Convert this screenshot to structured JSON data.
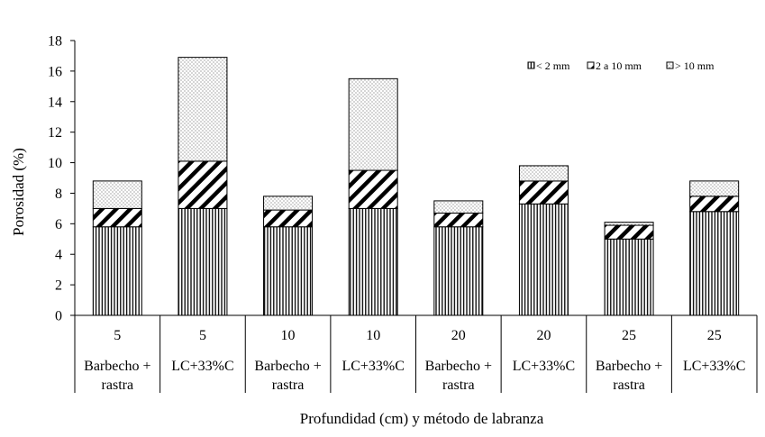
{
  "chart_data": {
    "type": "bar",
    "stacked": true,
    "xlabel": "Profundidad (cm) y método de labranza",
    "ylabel": "Porosidad (%)",
    "ylim": [
      0,
      18
    ],
    "yticks": [
      0,
      2,
      4,
      6,
      8,
      10,
      12,
      14,
      16,
      18
    ],
    "categories": [
      {
        "depth": "5",
        "method": [
          "Barbecho +",
          "rastra"
        ]
      },
      {
        "depth": "5",
        "method": [
          "LC+33%C"
        ]
      },
      {
        "depth": "10",
        "method": [
          "Barbecho +",
          "rastra"
        ]
      },
      {
        "depth": "10",
        "method": [
          "LC+33%C"
        ]
      },
      {
        "depth": "20",
        "method": [
          "Barbecho +",
          "rastra"
        ]
      },
      {
        "depth": "20",
        "method": [
          "LC+33%C"
        ]
      },
      {
        "depth": "25",
        "method": [
          "Barbecho +",
          "rastra"
        ]
      },
      {
        "depth": "25",
        "method": [
          "LC+33%C"
        ]
      }
    ],
    "series": [
      {
        "name": "< 2 mm",
        "pattern": "vertical",
        "values": [
          5.8,
          7.0,
          5.8,
          7.0,
          5.8,
          7.3,
          5.0,
          6.8
        ]
      },
      {
        "name": "2 a 10  mm",
        "pattern": "diagonal",
        "values": [
          1.2,
          3.1,
          1.1,
          2.5,
          0.9,
          1.5,
          0.9,
          1.0
        ]
      },
      {
        "name": "> 10 mm",
        "pattern": "dotted",
        "values": [
          1.8,
          6.8,
          0.9,
          6.0,
          0.8,
          1.0,
          0.2,
          1.0
        ]
      }
    ],
    "legend_position": "top-right"
  }
}
